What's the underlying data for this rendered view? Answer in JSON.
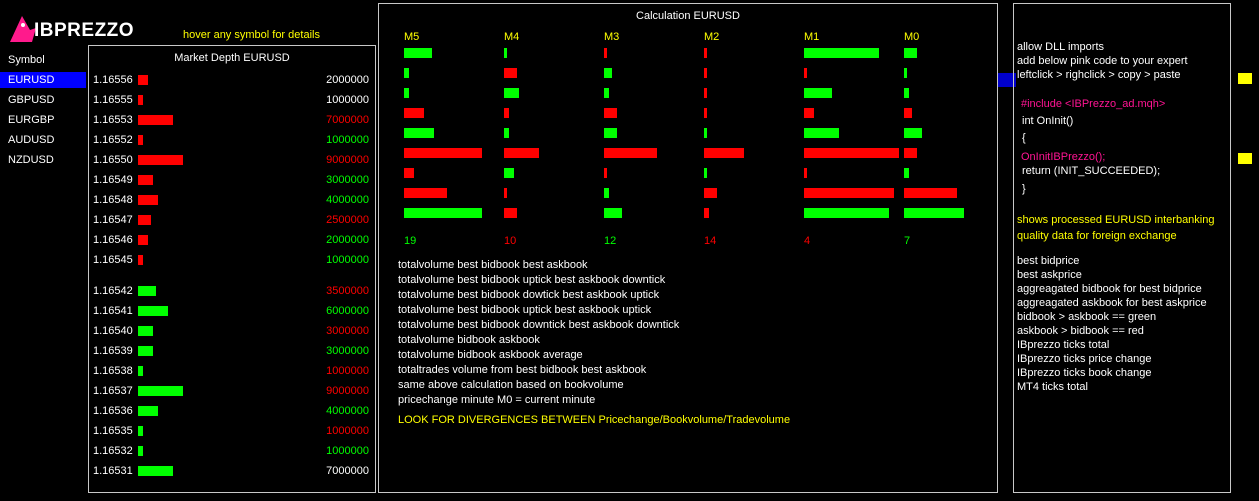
{
  "logo": {
    "text": "IBPREZZO"
  },
  "hover_hint": "hover any symbol for details",
  "symbols": {
    "header": "Symbol",
    "items": [
      {
        "label": "EURUSD",
        "active": true
      },
      {
        "label": "GBPUSD",
        "active": false
      },
      {
        "label": "EURGBP",
        "active": false
      },
      {
        "label": "AUDUSD",
        "active": false
      },
      {
        "label": "NZDUSD",
        "active": false
      }
    ]
  },
  "depth": {
    "title": "Market Depth EURUSD",
    "rows": [
      {
        "price": "1.16556",
        "bar_level": 2,
        "bar_color": "#ff0000",
        "volume": "2000000",
        "vol_color": "#ffffff"
      },
      {
        "price": "1.16555",
        "bar_level": 1,
        "bar_color": "#ff0000",
        "volume": "1000000",
        "vol_color": "#ffffff"
      },
      {
        "price": "1.16553",
        "bar_level": 7,
        "bar_color": "#ff0000",
        "volume": "7000000",
        "vol_color": "#ff0000"
      },
      {
        "price": "1.16552",
        "bar_level": 1,
        "bar_color": "#ff0000",
        "volume": "1000000",
        "vol_color": "#00ff00"
      },
      {
        "price": "1.16550",
        "bar_level": 9,
        "bar_color": "#ff0000",
        "volume": "9000000",
        "vol_color": "#ff0000"
      },
      {
        "price": "1.16549",
        "bar_level": 3,
        "bar_color": "#ff0000",
        "volume": "3000000",
        "vol_color": "#00ff00"
      },
      {
        "price": "1.16548",
        "bar_level": 4,
        "bar_color": "#ff0000",
        "volume": "4000000",
        "vol_color": "#00ff00"
      },
      {
        "price": "1.16547",
        "bar_level": 2.5,
        "bar_color": "#ff0000",
        "volume": "2500000",
        "vol_color": "#ff0000"
      },
      {
        "price": "1.16546",
        "bar_level": 2,
        "bar_color": "#ff0000",
        "volume": "2000000",
        "vol_color": "#00ff00"
      },
      {
        "price": "1.16545",
        "bar_level": 1,
        "bar_color": "#ff0000",
        "volume": "1000000",
        "vol_color": "#00ff00"
      },
      {
        "price": "1.16542",
        "bar_level": 3.5,
        "bar_color": "#00ff00",
        "volume": "3500000",
        "vol_color": "#ff0000"
      },
      {
        "price": "1.16541",
        "bar_level": 6,
        "bar_color": "#00ff00",
        "volume": "6000000",
        "vol_color": "#00ff00"
      },
      {
        "price": "1.16540",
        "bar_level": 3,
        "bar_color": "#00ff00",
        "volume": "3000000",
        "vol_color": "#ff0000"
      },
      {
        "price": "1.16539",
        "bar_level": 3,
        "bar_color": "#00ff00",
        "volume": "3000000",
        "vol_color": "#00ff00"
      },
      {
        "price": "1.16538",
        "bar_level": 1,
        "bar_color": "#00ff00",
        "volume": "1000000",
        "vol_color": "#ff0000"
      },
      {
        "price": "1.16537",
        "bar_level": 9,
        "bar_color": "#00ff00",
        "volume": "9000000",
        "vol_color": "#ff0000"
      },
      {
        "price": "1.16536",
        "bar_level": 4,
        "bar_color": "#00ff00",
        "volume": "4000000",
        "vol_color": "#00ff00"
      },
      {
        "price": "1.16535",
        "bar_level": 1,
        "bar_color": "#00ff00",
        "volume": "1000000",
        "vol_color": "#ff0000"
      },
      {
        "price": "1.16532",
        "bar_level": 1,
        "bar_color": "#00ff00",
        "volume": "1000000",
        "vol_color": "#00ff00"
      },
      {
        "price": "1.16531",
        "bar_level": 7,
        "bar_color": "#00ff00",
        "volume": "7000000",
        "vol_color": "#ffffff"
      }
    ]
  },
  "calc": {
    "title": "Calculation EURUSD",
    "columns": [
      {
        "label": "M5",
        "total": "19",
        "total_color": "#00ff00",
        "bars": [
          {
            "v": 5.5,
            "c": "#00ff00"
          },
          {
            "v": 1,
            "c": "#00ff00"
          },
          {
            "v": 1,
            "c": "#00ff00"
          },
          {
            "v": 4,
            "c": "#ff0000"
          },
          {
            "v": 6,
            "c": "#00ff00"
          },
          {
            "v": 15.5,
            "c": "#ff0000"
          },
          {
            "v": 2,
            "c": "#ff0000"
          },
          {
            "v": 8.5,
            "c": "#ff0000"
          },
          {
            "v": 15.5,
            "c": "#00ff00"
          }
        ]
      },
      {
        "label": "M4",
        "total": "10",
        "total_color": "#ff0000",
        "bars": [
          {
            "v": 0.5,
            "c": "#00ff00"
          },
          {
            "v": 2.5,
            "c": "#ff0000"
          },
          {
            "v": 3,
            "c": "#00ff00"
          },
          {
            "v": 1,
            "c": "#ff0000"
          },
          {
            "v": 1,
            "c": "#00ff00"
          },
          {
            "v": 7,
            "c": "#ff0000"
          },
          {
            "v": 2,
            "c": "#00ff00"
          },
          {
            "v": 0.5,
            "c": "#ff0000"
          },
          {
            "v": 2.5,
            "c": "#ff0000"
          }
        ]
      },
      {
        "label": "M3",
        "total": "12",
        "total_color": "#00ff00",
        "bars": [
          {
            "v": 0.5,
            "c": "#ff0000"
          },
          {
            "v": 1.5,
            "c": "#00ff00"
          },
          {
            "v": 1,
            "c": "#00ff00"
          },
          {
            "v": 2.5,
            "c": "#ff0000"
          },
          {
            "v": 2.5,
            "c": "#00ff00"
          },
          {
            "v": 10.5,
            "c": "#ff0000"
          },
          {
            "v": 0.5,
            "c": "#ff0000"
          },
          {
            "v": 1,
            "c": "#00ff00"
          },
          {
            "v": 3.5,
            "c": "#00ff00"
          }
        ]
      },
      {
        "label": "M2",
        "total": "14",
        "total_color": "#ff0000",
        "bars": [
          {
            "v": 0.5,
            "c": "#ff0000"
          },
          {
            "v": 0.5,
            "c": "#ff0000"
          },
          {
            "v": 0.5,
            "c": "#ff0000"
          },
          {
            "v": 0.5,
            "c": "#ff0000"
          },
          {
            "v": 0.5,
            "c": "#00ff00"
          },
          {
            "v": 8,
            "c": "#ff0000"
          },
          {
            "v": 0.5,
            "c": "#00ff00"
          },
          {
            "v": 2.5,
            "c": "#ff0000"
          },
          {
            "v": 1,
            "c": "#ff0000"
          }
        ]
      },
      {
        "label": "M1",
        "total": "4",
        "total_color": "#ff0000",
        "bars": [
          {
            "v": 15,
            "c": "#00ff00"
          },
          {
            "v": 0.5,
            "c": "#ff0000"
          },
          {
            "v": 5.5,
            "c": "#00ff00"
          },
          {
            "v": 2,
            "c": "#ff0000"
          },
          {
            "v": 7,
            "c": "#00ff00"
          },
          {
            "v": 20,
            "c": "#ff0000"
          },
          {
            "v": 0.5,
            "c": "#ff0000"
          },
          {
            "v": 18,
            "c": "#ff0000"
          },
          {
            "v": 17,
            "c": "#00ff00"
          }
        ]
      },
      {
        "label": "M0",
        "total": "7",
        "total_color": "#00ff00",
        "bars": [
          {
            "v": 2.5,
            "c": "#00ff00"
          },
          {
            "v": 0.5,
            "c": "#00ff00"
          },
          {
            "v": 1,
            "c": "#00ff00"
          },
          {
            "v": 1.5,
            "c": "#ff0000"
          },
          {
            "v": 3.5,
            "c": "#00ff00"
          },
          {
            "v": 2.5,
            "c": "#ff0000"
          },
          {
            "v": 1,
            "c": "#00ff00"
          },
          {
            "v": 10.5,
            "c": "#ff0000"
          },
          {
            "v": 12,
            "c": "#00ff00"
          }
        ]
      }
    ],
    "descriptions": [
      "totalvolume best bidbook best askbook",
      "totalvolume best bidbook uptick best askbook downtick",
      "totalvolume best bidbook dowtick best askbook uptick",
      "totalvolume best bidbook uptick best askbook uptick",
      "totalvolume best bidbook downtick best askbook downtick",
      "totalvolume bidbook askbook",
      "totalvolume bidbook askbook average",
      "totaltrades volume from best bidbook best askbook",
      "same above calculation based on bookvolume",
      "pricechange minute M0 = current minute"
    ],
    "divergence_note": "LOOK FOR DIVERGENCES BETWEEN Pricechange/Bookvolume/Tradevolume"
  },
  "info": {
    "instructions": [
      "allow DLL imports",
      "add below pink code to your expert",
      "leftclick > righclick > copy > paste"
    ],
    "code": {
      "include": "#include <IBPrezzo_ad.mqh>",
      "oninit": "int OnInit()",
      "brace_open": "{",
      "call": "OnInitIBPrezzo();",
      "ret": "return (INIT_SUCCEEDED);",
      "brace_close": "}"
    },
    "note": [
      "shows processed  EURUSD  interbanking",
      "quality data for foreign exchange"
    ],
    "legend": [
      "best bidprice",
      "best askprice",
      "aggreagated bidbook for best bidprice",
      "aggreagated askbook for best askprice",
      "bidbook > askbook == green",
      "askbook > bidbook == red",
      "IBprezzo ticks total",
      "IBprezzo ticks price change",
      "IBprezzo ticks book change",
      "MT4 ticks total"
    ]
  },
  "colors": {
    "green": "#00ff00",
    "red": "#ff0000",
    "yellow": "#ffff00",
    "pink": "#ff1493",
    "active": "#0000ff"
  }
}
